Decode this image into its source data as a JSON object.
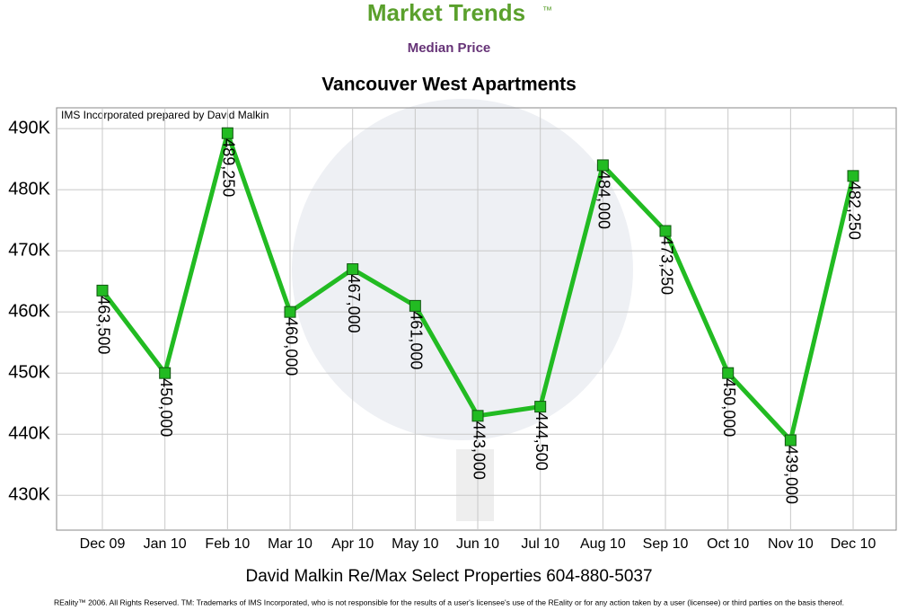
{
  "chart_data": {
    "type": "line",
    "title": "Market Trends",
    "trademark": "™",
    "subtitle": "Median Price",
    "chart_title": "Vancouver West Apartments",
    "annotation": "IMS Incorporated prepared by David Malkin",
    "footer": "David Malkin Re/Max Select Properties 604-880-5037",
    "copyright": "REality™ 2006. All Rights Reserved. TM: Trademarks of IMS Incorporated, who is not responsible for the results of a user's licensee's use of the REality  or for any action taken by a user (licensee) or third parties on the basis thereof.",
    "categories": [
      "Dec 09",
      "Jan 10",
      "Feb 10",
      "Mar 10",
      "Apr 10",
      "May 10",
      "Jun 10",
      "Jul 10",
      "Aug 10",
      "Sep 10",
      "Oct 10",
      "Nov 10",
      "Dec 10"
    ],
    "values": [
      463500,
      450000,
      489250,
      460000,
      467000,
      461000,
      443000,
      444500,
      484000,
      473250,
      450000,
      439000,
      482250
    ],
    "value_labels": [
      "463,500",
      "450,000",
      "489,250",
      "460,000",
      "467,000",
      "461,000",
      "443,000",
      "444,500",
      "484,000",
      "473,250",
      "450,000",
      "439,000",
      "482,250"
    ],
    "color": "#22bb22",
    "ylim": [
      424300,
      493400
    ],
    "yticks": [
      {
        "value": 430000,
        "label": "430K"
      },
      {
        "value": 440000,
        "label": "440K"
      },
      {
        "value": 450000,
        "label": "450K"
      },
      {
        "value": 460000,
        "label": "460K"
      },
      {
        "value": 470000,
        "label": "470K"
      },
      {
        "value": 480000,
        "label": "480K"
      },
      {
        "value": 490000,
        "label": "490K"
      }
    ],
    "grid": true
  }
}
